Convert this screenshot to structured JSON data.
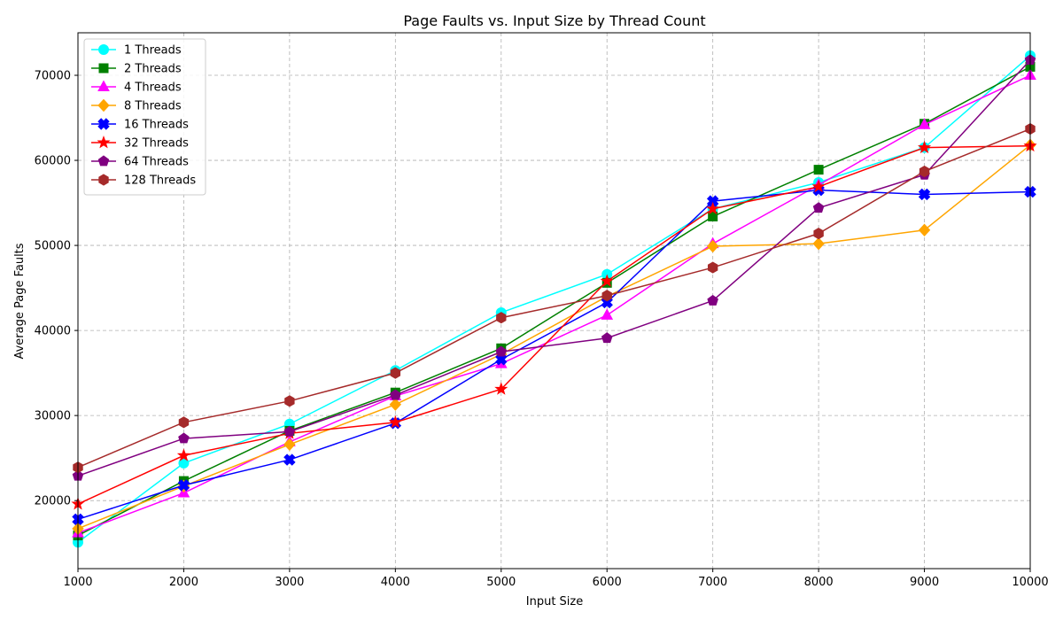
{
  "chart_data": {
    "type": "line",
    "title": "Page Faults vs. Input Size by Thread Count",
    "xlabel": "Input Size",
    "ylabel": "Average Page Faults",
    "xlim": [
      1000,
      10000
    ],
    "ylim": [
      12000,
      75000
    ],
    "xticks": [
      1000,
      2000,
      3000,
      4000,
      5000,
      6000,
      7000,
      8000,
      9000,
      10000
    ],
    "yticks": [
      20000,
      30000,
      40000,
      50000,
      60000,
      70000
    ],
    "grid": true,
    "legend_position": "upper-left",
    "x": [
      1000,
      2000,
      3000,
      4000,
      5000,
      6000,
      7000,
      8000,
      9000,
      10000
    ],
    "series": [
      {
        "name": "1 Threads",
        "color": "#00ffff",
        "marker": "circle",
        "values": [
          15100,
          24400,
          29000,
          35300,
          42100,
          46600,
          54300,
          57400,
          61500,
          72300
        ]
      },
      {
        "name": "2 Threads",
        "color": "#008000",
        "marker": "square",
        "values": [
          15900,
          22300,
          28200,
          32700,
          37900,
          45600,
          53400,
          58900,
          64300,
          71000
        ]
      },
      {
        "name": "4 Threads",
        "color": "#ff00ff",
        "marker": "triangle",
        "values": [
          16200,
          20900,
          26900,
          32300,
          36100,
          41800,
          50200,
          57100,
          64200,
          70000
        ]
      },
      {
        "name": "8 Threads",
        "color": "#ffa500",
        "marker": "diamond",
        "values": [
          16700,
          21700,
          26600,
          31300,
          37200,
          44000,
          49900,
          50200,
          51800,
          61800
        ]
      },
      {
        "name": "16 Threads",
        "color": "#0000ff",
        "marker": "x",
        "values": [
          17800,
          21800,
          24800,
          29100,
          36600,
          43300,
          55200,
          56500,
          56000,
          56300
        ]
      },
      {
        "name": "32 Threads",
        "color": "#ff0000",
        "marker": "star",
        "values": [
          19600,
          25300,
          27900,
          29200,
          33100,
          45800,
          54300,
          56900,
          61500,
          61700
        ]
      },
      {
        "name": "64 Threads",
        "color": "#800080",
        "marker": "pentagon",
        "values": [
          22900,
          27300,
          28100,
          32400,
          37500,
          39100,
          43500,
          54400,
          58300,
          71800
        ]
      },
      {
        "name": "128 Threads",
        "color": "#a52a2a",
        "marker": "hexagon",
        "values": [
          23900,
          29200,
          31700,
          35000,
          41500,
          44100,
          47400,
          51400,
          58700,
          63700
        ]
      }
    ]
  }
}
